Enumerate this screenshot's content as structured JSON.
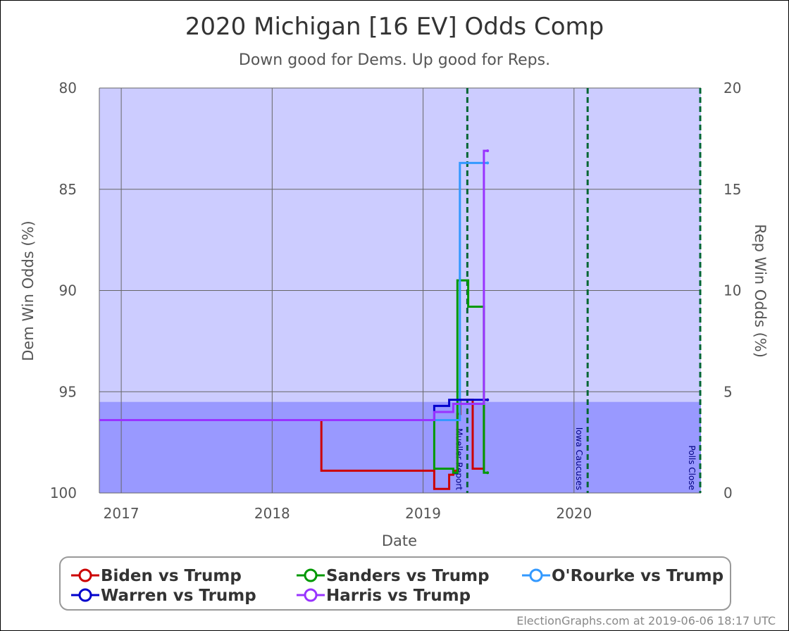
{
  "chart_data": {
    "type": "line",
    "title": "2020 Michigan [16 EV] Odds Comp",
    "subtitle": "Down good for Dems. Up good for Reps.",
    "xlabel": "Date",
    "ylabel_left": "Dem Win Odds (%)",
    "ylabel_right": "Rep Win Odds (%)",
    "x_range": [
      "2016-11-09",
      "2020-11-03"
    ],
    "left_axis": {
      "min": 80,
      "max": 100,
      "ticks": [
        "80",
        "85",
        "90",
        "95",
        "100"
      ],
      "inverted": true
    },
    "right_axis": {
      "min": 0,
      "max": 20,
      "ticks": [
        "20",
        "15",
        "10",
        "5",
        "0"
      ]
    },
    "x_ticks": [
      {
        "label": "2017",
        "date": "2017-01-01"
      },
      {
        "label": "2018",
        "date": "2018-01-01"
      },
      {
        "label": "2019",
        "date": "2019-01-01"
      },
      {
        "label": "2020",
        "date": "2020-01-01"
      }
    ],
    "grid": true,
    "bands": [
      {
        "from": 80,
        "to": 95.5,
        "color": "#ccccff"
      },
      {
        "from": 95.5,
        "to": 100,
        "color": "#9999ff"
      }
    ],
    "events": [
      {
        "label": "Mueller Report",
        "date": "2019-04-18"
      },
      {
        "label": "Iowa Caucuses",
        "date": "2020-02-03"
      },
      {
        "label": "Polls Close",
        "date": "2020-11-03"
      }
    ],
    "series": [
      {
        "name": "Biden vs Trump",
        "color": "#cc0000",
        "points": [
          [
            "2016-11-09",
            96.4
          ],
          [
            "2018-04-30",
            96.4
          ],
          [
            "2018-04-30",
            98.9
          ],
          [
            "2019-01-28",
            98.9
          ],
          [
            "2019-01-28",
            99.8
          ],
          [
            "2019-03-05",
            99.8
          ],
          [
            "2019-03-05",
            99.1
          ],
          [
            "2019-03-15",
            99.1
          ],
          [
            "2019-03-15",
            98.9
          ],
          [
            "2019-03-25",
            98.9
          ],
          [
            "2019-03-25",
            96.1
          ],
          [
            "2019-04-01",
            96.1
          ],
          [
            "2019-04-01",
            95.4
          ],
          [
            "2019-05-01",
            95.4
          ],
          [
            "2019-05-01",
            98.8
          ],
          [
            "2019-05-28",
            98.8
          ],
          [
            "2019-05-28",
            95.4
          ],
          [
            "2019-06-06",
            95.4
          ]
        ]
      },
      {
        "name": "Sanders vs Trump",
        "color": "#009900",
        "points": [
          [
            "2016-11-09",
            96.4
          ],
          [
            "2019-01-28",
            96.4
          ],
          [
            "2019-01-28",
            98.8
          ],
          [
            "2019-03-15",
            98.8
          ],
          [
            "2019-03-15",
            99.0
          ],
          [
            "2019-03-25",
            99.0
          ],
          [
            "2019-03-25",
            89.5
          ],
          [
            "2019-04-20",
            89.5
          ],
          [
            "2019-04-20",
            90.8
          ],
          [
            "2019-05-28",
            90.8
          ],
          [
            "2019-05-28",
            99.0
          ],
          [
            "2019-06-06",
            99.0
          ]
        ]
      },
      {
        "name": "O'Rourke vs Trump",
        "color": "#3399ff",
        "points": [
          [
            "2016-11-09",
            96.4
          ],
          [
            "2019-01-28",
            96.4
          ],
          [
            "2019-03-31",
            96.4
          ],
          [
            "2019-03-31",
            83.7
          ],
          [
            "2019-06-06",
            83.7
          ]
        ]
      },
      {
        "name": "Warren vs Trump",
        "color": "#0000cc",
        "points": [
          [
            "2016-11-09",
            96.4
          ],
          [
            "2019-01-28",
            96.4
          ],
          [
            "2019-01-28",
            95.7
          ],
          [
            "2019-03-05",
            95.7
          ],
          [
            "2019-03-05",
            95.4
          ],
          [
            "2019-06-06",
            95.4
          ]
        ]
      },
      {
        "name": "Harris vs Trump",
        "color": "#9933ff",
        "points": [
          [
            "2016-11-09",
            96.4
          ],
          [
            "2019-01-28",
            96.4
          ],
          [
            "2019-01-28",
            96.0
          ],
          [
            "2019-03-15",
            96.0
          ],
          [
            "2019-03-15",
            95.6
          ],
          [
            "2019-05-28",
            95.6
          ],
          [
            "2019-05-28",
            83.1
          ],
          [
            "2019-06-06",
            83.1
          ]
        ]
      }
    ],
    "legend": {
      "placement": "bottom",
      "entries": [
        {
          "name": "Biden vs Trump",
          "color": "#cc0000"
        },
        {
          "name": "Sanders vs Trump",
          "color": "#009900"
        },
        {
          "name": "O'Rourke vs Trump",
          "color": "#3399ff"
        },
        {
          "name": "Warren vs Trump",
          "color": "#0000cc"
        },
        {
          "name": "Harris vs Trump",
          "color": "#9933ff"
        }
      ]
    }
  },
  "credit": "ElectionGraphs.com at 2019-06-06 18:17 UTC"
}
